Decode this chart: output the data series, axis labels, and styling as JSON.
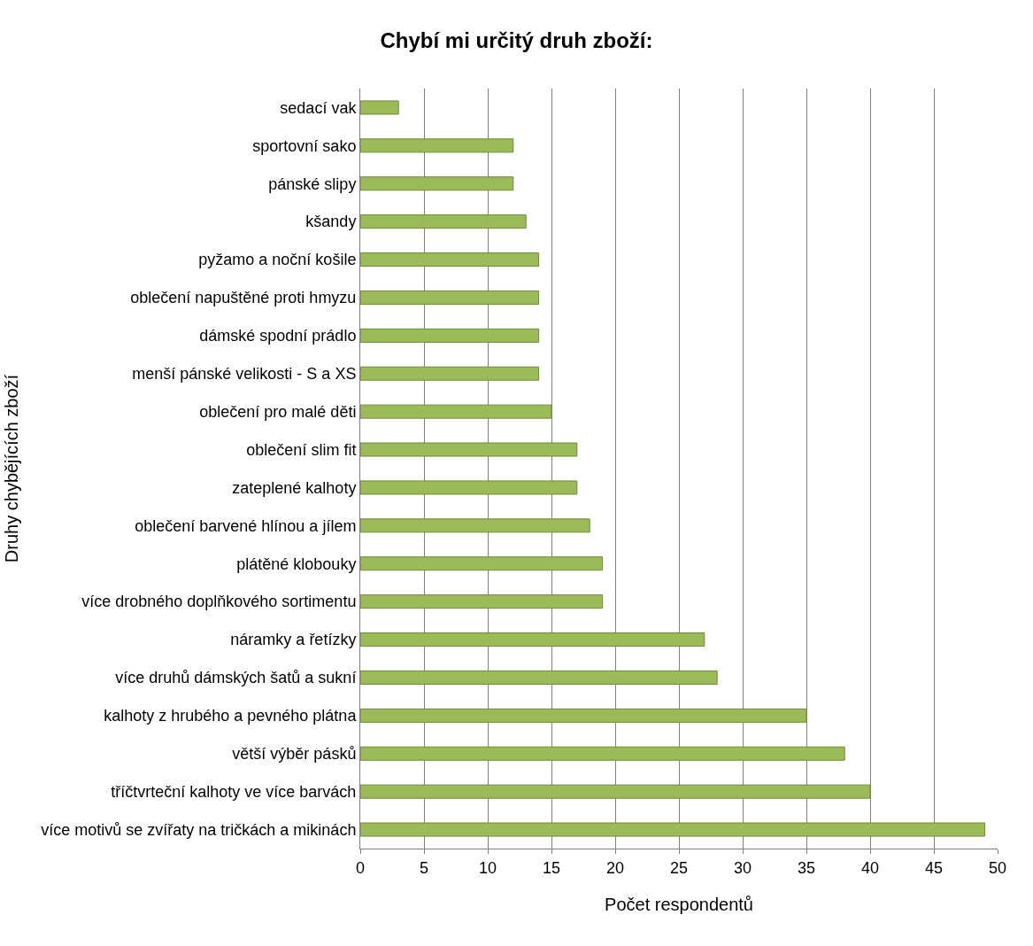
{
  "chart_data": {
    "type": "bar",
    "orientation": "horizontal",
    "title": "Chybí mi určitý druh zboží:",
    "xlabel": "Počet respondentů",
    "ylabel": "Druhy chybějících zboží",
    "categories": [
      "sedací vak",
      "sportovní sako",
      "pánské slipy",
      "kšandy",
      "pyžamo a noční košile",
      "oblečení napuštěné proti hmyzu",
      "dámské spodní prádlo",
      "menší pánské velikosti - S a XS",
      "oblečení pro malé děti",
      "oblečení slim fit",
      "zateplené kalhoty",
      "oblečení barvené hlínou a jílem",
      "plátěné klobouky",
      "více drobného doplňkového sortimentu",
      "náramky a řetízky",
      "více druhů dámských šatů a sukní",
      "kalhoty z hrubého a pevného plátna",
      "větší výběr pásků",
      "tříčtvrteční kalhoty ve více barvách",
      "více motivů se zvířaty na tričkách a mikinách"
    ],
    "values": [
      3,
      12,
      12,
      13,
      14,
      14,
      14,
      14,
      15,
      17,
      17,
      18,
      19,
      19,
      27,
      28,
      35,
      38,
      40,
      49
    ],
    "color": "#9bbb59",
    "xlim": [
      0,
      50
    ],
    "xticks": [
      0,
      5,
      10,
      15,
      20,
      25,
      30,
      35,
      40,
      45,
      50
    ],
    "grid": "x"
  }
}
